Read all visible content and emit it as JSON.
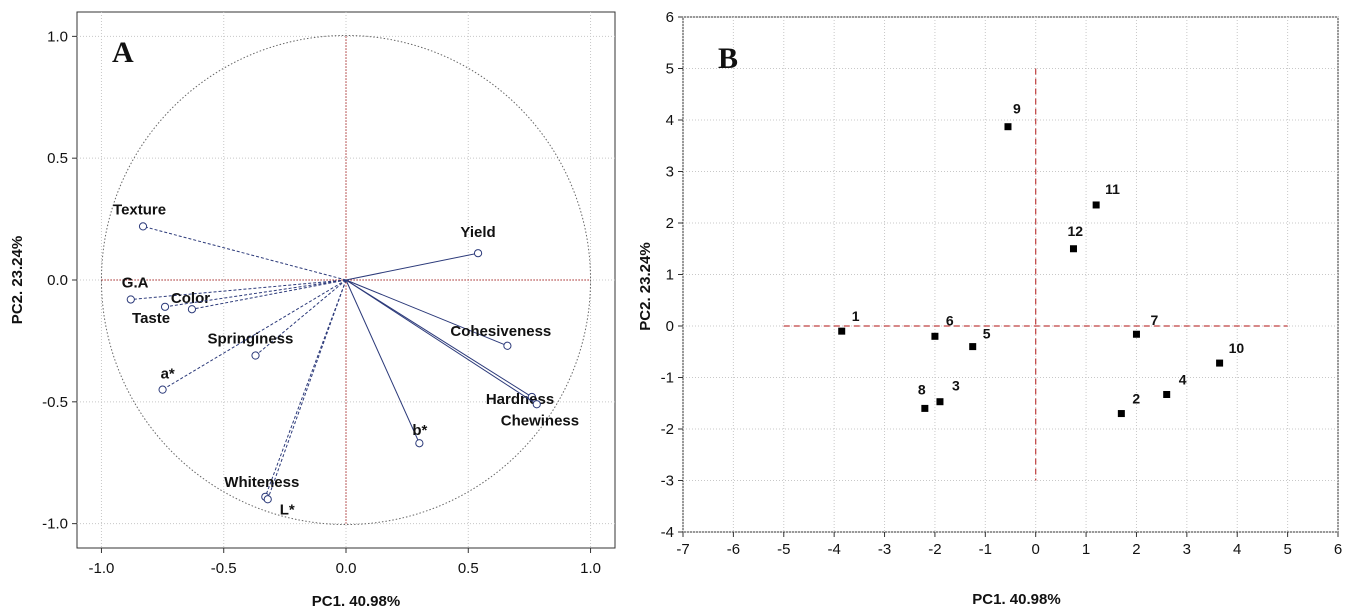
{
  "chart_data": [
    {
      "type": "scatter",
      "panel": "A",
      "title": "",
      "xlabel": "PC1. 40.98%",
      "ylabel": "PC2. 23.24%",
      "xlim": [
        -1.1,
        1.1
      ],
      "ylim": [
        -1.1,
        1.1
      ],
      "xticks": [
        "-1.0",
        "-0.5",
        "0.0",
        "0.5",
        "1.0"
      ],
      "yticks": [
        "1.0",
        "0.5",
        "0.0",
        "-0.5",
        "-1.0"
      ],
      "grid": true,
      "unit_circle": true,
      "loadings": [
        {
          "name": "Texture",
          "x": -0.83,
          "y": 0.22
        },
        {
          "name": "Yield",
          "x": 0.54,
          "y": 0.11
        },
        {
          "name": "G.A",
          "x": -0.88,
          "y": -0.08
        },
        {
          "name": "Color",
          "x": -0.63,
          "y": -0.12
        },
        {
          "name": "Taste",
          "x": -0.74,
          "y": -0.11
        },
        {
          "name": "Springiness",
          "x": -0.37,
          "y": -0.31
        },
        {
          "name": "a*",
          "x": -0.75,
          "y": -0.45
        },
        {
          "name": "Cohesiveness",
          "x": 0.66,
          "y": -0.27
        },
        {
          "name": "Hardness",
          "x": 0.76,
          "y": -0.48
        },
        {
          "name": "Chewiness",
          "x": 0.78,
          "y": -0.51
        },
        {
          "name": "b*",
          "x": 0.3,
          "y": -0.67
        },
        {
          "name": "Whiteness",
          "x": -0.33,
          "y": -0.89
        },
        {
          "name": "L*",
          "x": -0.32,
          "y": -0.9
        }
      ]
    },
    {
      "type": "scatter",
      "panel": "B",
      "title": "",
      "xlabel": "PC1. 40.98%",
      "ylabel": "PC2. 23.24%",
      "xlim": [
        -7,
        6
      ],
      "ylim": [
        -4,
        6
      ],
      "xticks": [
        "-7",
        "-6",
        "-5",
        "-4",
        "-3",
        "-2",
        "-1",
        "0",
        "1",
        "2",
        "3",
        "4",
        "5",
        "6"
      ],
      "yticks": [
        "6",
        "5",
        "4",
        "3",
        "2",
        "1",
        "0",
        "-1",
        "-2",
        "-3",
        "-4"
      ],
      "grid": true,
      "points": [
        {
          "label": "1",
          "x": -3.85,
          "y": -0.1
        },
        {
          "label": "2",
          "x": 1.7,
          "y": -1.7
        },
        {
          "label": "3",
          "x": -1.9,
          "y": -1.47
        },
        {
          "label": "4",
          "x": 2.6,
          "y": -1.33
        },
        {
          "label": "5",
          "x": -1.25,
          "y": -0.4
        },
        {
          "label": "6",
          "x": -2.0,
          "y": -0.2
        },
        {
          "label": "7",
          "x": 2.0,
          "y": -0.16
        },
        {
          "label": "8",
          "x": -2.2,
          "y": -1.6
        },
        {
          "label": "9",
          "x": -0.55,
          "y": 3.87
        },
        {
          "label": "10",
          "x": 3.65,
          "y": -0.72
        },
        {
          "label": "11",
          "x": 1.2,
          "y": 2.35
        },
        {
          "label": "12",
          "x": 0.75,
          "y": 1.5
        }
      ]
    }
  ]
}
